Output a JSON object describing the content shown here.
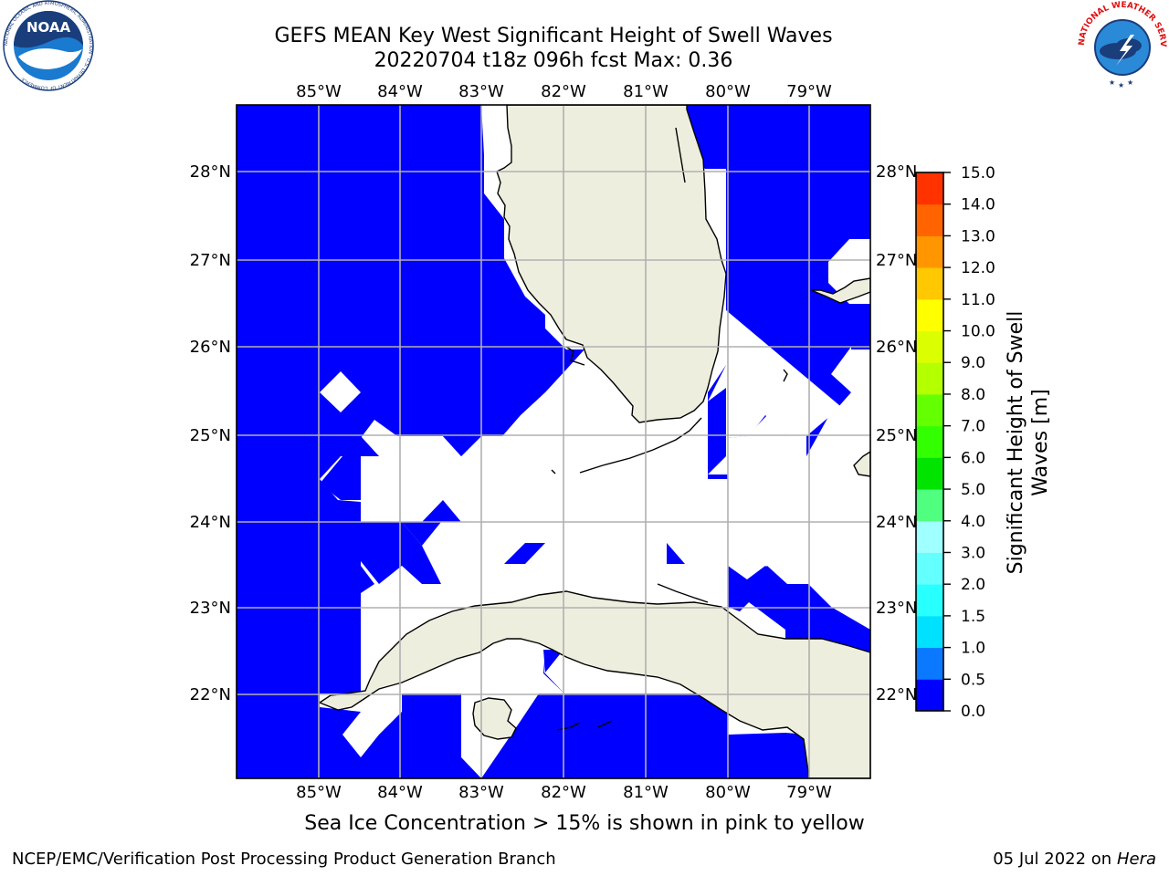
{
  "title_line1": "GEFS MEAN Key West Significant Height of Swell Waves",
  "title_line2": "20220704 t18z 096h fcst   Max: 0.36",
  "map": {
    "lon_ticks": [
      "85°W",
      "84°W",
      "83°W",
      "82°W",
      "81°W",
      "80°W",
      "79°W"
    ],
    "lat_ticks": [
      "28°N",
      "27°N",
      "26°N",
      "25°N",
      "24°N",
      "23°N",
      "22°N"
    ],
    "ocean_color": "#0000ff",
    "land_color": "#eeeedf",
    "gridline_color": "#b0b0b0",
    "visible_places": [
      "Florida peninsula",
      "Cuba",
      "Isla de la Juventud",
      "Andros / Bahamas"
    ]
  },
  "colorbar": {
    "label": "Significant Height of Swell Waves [m]",
    "ticks": [
      "0.0",
      "0.5",
      "1.0",
      "1.5",
      "2.0",
      "3.0",
      "4.0",
      "5.0",
      "6.0",
      "7.0",
      "8.0",
      "9.0",
      "10.0",
      "11.0",
      "12.0",
      "13.0",
      "14.0",
      "15.0"
    ],
    "colors": [
      "#0000ff",
      "#0a78ff",
      "#00e1ff",
      "#28ffff",
      "#64ffff",
      "#a0ffff",
      "#50ff80",
      "#00e400",
      "#32ff00",
      "#64ff00",
      "#b4ff00",
      "#dcff00",
      "#ffff00",
      "#ffc800",
      "#ff9600",
      "#ff6400",
      "#ff3200",
      "#ff0000"
    ]
  },
  "note": "Sea Ice Concentration > 15% is shown in pink to yellow",
  "footer_left": "NCEP/EMC/Verification Post Processing Product Generation Branch",
  "footer_date": "05 Jul 2022 on ",
  "footer_host": "Hera",
  "logos": {
    "noaa_text": "NOAA",
    "noaa_ring": "NATIONAL OCEANIC AND ATMOSPHERIC ADMINISTRATION · U.S. DEPARTMENT OF COMMERCE",
    "nws_ring": "NATIONAL WEATHER SERVICE"
  }
}
